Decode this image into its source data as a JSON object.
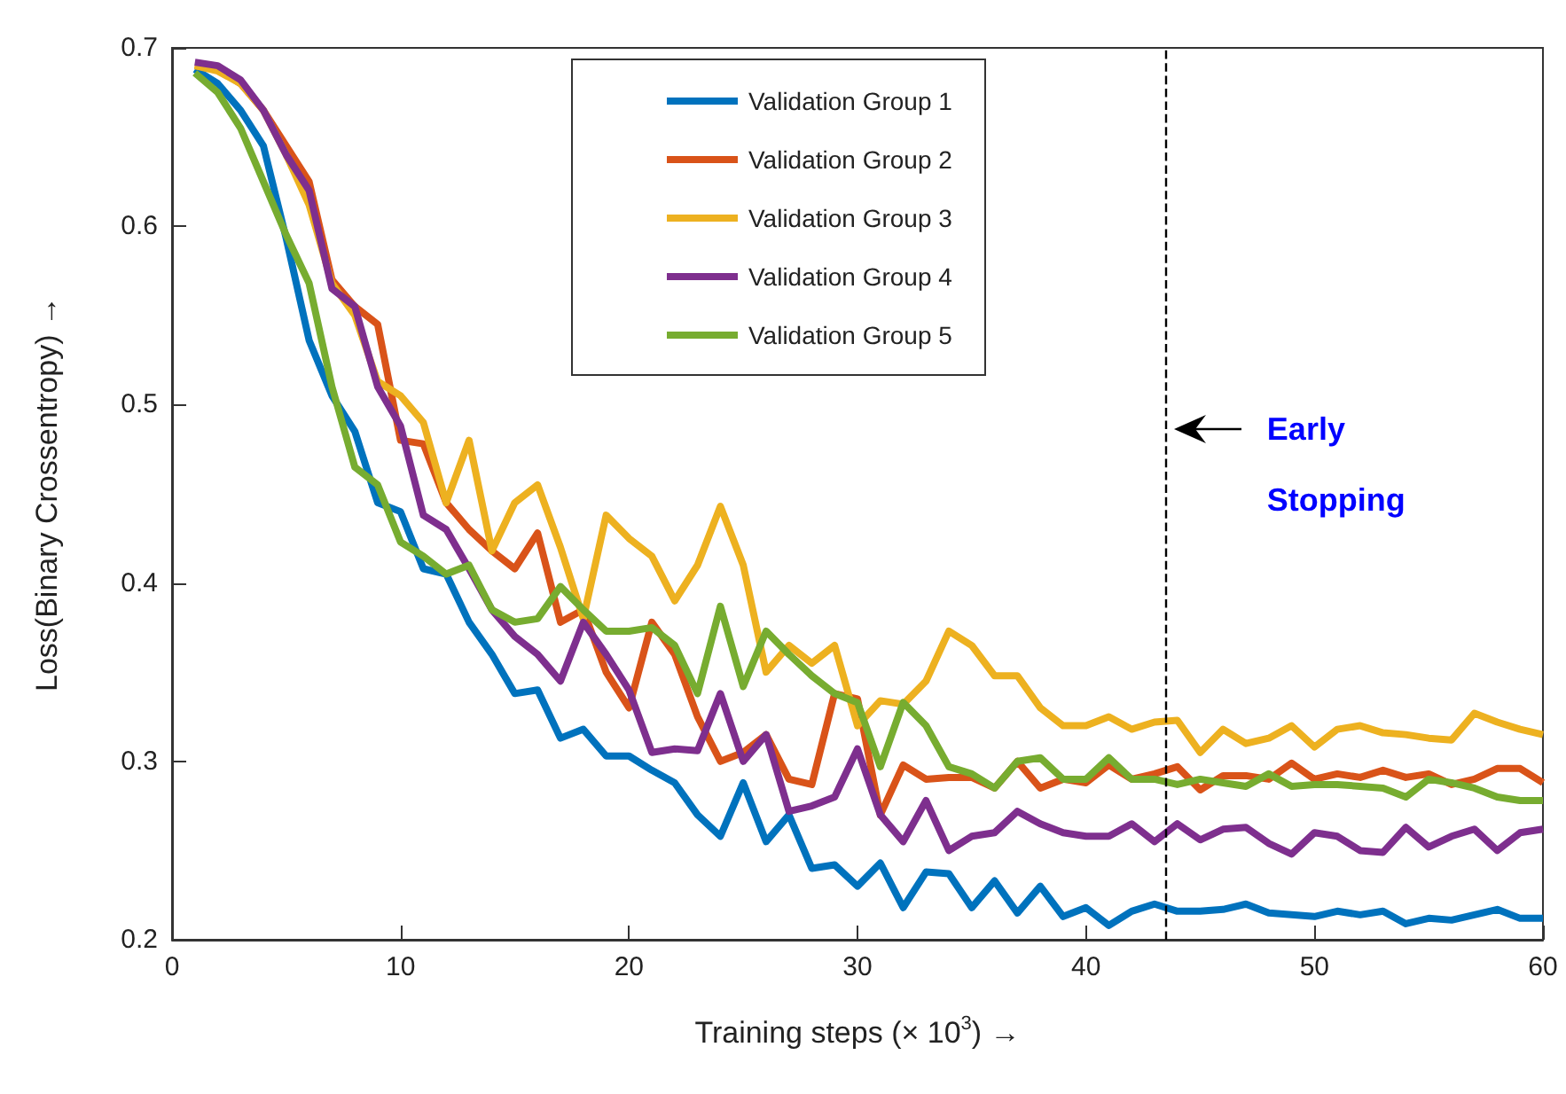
{
  "chart_data": {
    "type": "line",
    "xlabel": "Training steps (× 10$^{3}$) →",
    "ylabel": "Loss(Binary Crossentropy) →",
    "x": [
      1,
      2,
      3,
      4,
      5,
      6,
      7,
      8,
      9,
      10,
      11,
      12,
      13,
      14,
      15,
      16,
      17,
      18,
      19,
      20,
      21,
      22,
      23,
      24,
      25,
      26,
      27,
      28,
      29,
      30,
      31,
      32,
      33,
      34,
      35,
      36,
      37,
      38,
      39,
      40,
      41,
      42,
      43,
      44,
      45,
      46,
      47,
      48,
      49,
      50,
      51,
      52,
      53,
      54,
      55,
      56,
      57,
      58,
      59,
      60
    ],
    "series": [
      {
        "name": "Validation Group 1",
        "color": "#0072bd",
        "values": [
          0.688,
          0.68,
          0.665,
          0.645,
          0.593,
          0.536,
          0.505,
          0.485,
          0.445,
          0.44,
          0.408,
          0.405,
          0.378,
          0.36,
          0.338,
          0.34,
          0.313,
          0.318,
          0.303,
          0.303,
          0.295,
          0.288,
          0.27,
          0.258,
          0.288,
          0.255,
          0.27,
          0.24,
          0.242,
          0.23,
          0.243,
          0.218,
          0.238,
          0.237,
          0.218,
          0.233,
          0.215,
          0.23,
          0.213,
          0.218,
          0.208,
          0.216,
          0.22,
          0.216,
          0.216,
          0.217,
          0.22,
          0.215,
          0.214,
          0.213,
          0.216,
          0.214,
          0.216,
          0.209,
          0.212,
          0.211,
          0.214,
          0.217,
          0.212,
          0.212
        ]
      },
      {
        "name": "Validation Group 2",
        "color": "#d95319",
        "values": [
          0.69,
          0.688,
          0.68,
          0.665,
          0.645,
          0.625,
          0.57,
          0.555,
          0.545,
          0.48,
          0.478,
          0.445,
          0.43,
          0.418,
          0.408,
          0.428,
          0.378,
          0.385,
          0.35,
          0.33,
          0.378,
          0.36,
          0.325,
          0.3,
          0.305,
          0.315,
          0.29,
          0.287,
          0.338,
          0.335,
          0.27,
          0.298,
          0.29,
          0.291,
          0.291,
          0.285,
          0.3,
          0.285,
          0.29,
          0.288,
          0.298,
          0.29,
          0.293,
          0.297,
          0.284,
          0.292,
          0.292,
          0.29,
          0.299,
          0.29,
          0.293,
          0.291,
          0.295,
          0.291,
          0.293,
          0.287,
          0.29,
          0.296,
          0.296,
          0.288
        ]
      },
      {
        "name": "Validation Group 3",
        "color": "#edb120",
        "values": [
          0.69,
          0.687,
          0.68,
          0.665,
          0.64,
          0.612,
          0.568,
          0.55,
          0.513,
          0.505,
          0.49,
          0.445,
          0.48,
          0.418,
          0.445,
          0.455,
          0.42,
          0.38,
          0.438,
          0.425,
          0.415,
          0.39,
          0.41,
          0.443,
          0.41,
          0.35,
          0.365,
          0.355,
          0.365,
          0.32,
          0.334,
          0.332,
          0.345,
          0.373,
          0.365,
          0.348,
          0.348,
          0.33,
          0.32,
          0.32,
          0.325,
          0.318,
          0.322,
          0.323,
          0.305,
          0.318,
          0.31,
          0.313,
          0.32,
          0.308,
          0.318,
          0.32,
          0.316,
          0.315,
          0.313,
          0.312,
          0.327,
          0.322,
          0.318,
          0.315
        ]
      },
      {
        "name": "Validation Group 4",
        "color": "#7e2f8e",
        "values": [
          0.692,
          0.69,
          0.682,
          0.665,
          0.64,
          0.62,
          0.565,
          0.555,
          0.51,
          0.488,
          0.438,
          0.43,
          0.408,
          0.385,
          0.37,
          0.36,
          0.345,
          0.378,
          0.36,
          0.34,
          0.305,
          0.307,
          0.306,
          0.338,
          0.3,
          0.315,
          0.272,
          0.275,
          0.28,
          0.307,
          0.27,
          0.255,
          0.278,
          0.25,
          0.258,
          0.26,
          0.272,
          0.265,
          0.26,
          0.258,
          0.258,
          0.265,
          0.255,
          0.265,
          0.256,
          0.262,
          0.263,
          0.254,
          0.248,
          0.26,
          0.258,
          0.25,
          0.249,
          0.263,
          0.252,
          0.258,
          0.262,
          0.25,
          0.26,
          0.262
        ]
      },
      {
        "name": "Validation Group 5",
        "color": "#77ac30",
        "values": [
          0.686,
          0.675,
          0.655,
          0.625,
          0.595,
          0.568,
          0.51,
          0.465,
          0.455,
          0.423,
          0.415,
          0.405,
          0.41,
          0.385,
          0.378,
          0.38,
          0.398,
          0.385,
          0.373,
          0.373,
          0.375,
          0.365,
          0.338,
          0.387,
          0.342,
          0.373,
          0.36,
          0.348,
          0.338,
          0.333,
          0.297,
          0.333,
          0.32,
          0.297,
          0.293,
          0.285,
          0.3,
          0.302,
          0.29,
          0.29,
          0.302,
          0.29,
          0.29,
          0.287,
          0.29,
          0.288,
          0.286,
          0.293,
          0.286,
          0.287,
          0.287,
          0.286,
          0.285,
          0.28,
          0.29,
          0.288,
          0.285,
          0.28,
          0.278,
          0.278
        ]
      }
    ],
    "xlim": [
      0,
      60
    ],
    "xticks": [
      0,
      10,
      20,
      30,
      40,
      50,
      60
    ],
    "ylim": [
      0.2,
      0.7
    ],
    "yticks": [
      0.2,
      0.3,
      0.4,
      0.5,
      0.6,
      0.7
    ],
    "ref_lines": [
      {
        "axis": "x",
        "value": 43.5,
        "line_style": "dashed",
        "color": "#000000"
      }
    ],
    "annotations": [
      "Early Stopping"
    ],
    "legend": "top",
    "grid": false,
    "marker": "none",
    "line_style": "solid"
  }
}
